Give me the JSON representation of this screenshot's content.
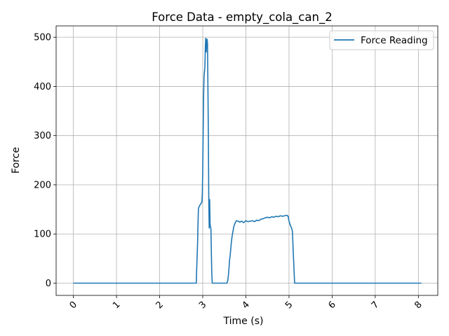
{
  "chart_data": {
    "type": "line",
    "title": "Force Data - empty_cola_can_2",
    "xlabel": "Time (s)",
    "ylabel": "Force",
    "xlim": [
      -0.4,
      8.45
    ],
    "ylim": [
      -24.9,
      523
    ],
    "x_ticks": [
      0,
      1,
      2,
      3,
      4,
      5,
      6,
      7,
      8
    ],
    "y_ticks": [
      0,
      100,
      200,
      300,
      400,
      500
    ],
    "x_tick_rotation": 45,
    "grid": true,
    "legend_position": "top-right",
    "series": [
      {
        "name": "Force Reading",
        "color": "#1f77b4",
        "points": [
          [
            0.0,
            0
          ],
          [
            2.85,
            0
          ],
          [
            2.86,
            30
          ],
          [
            2.87,
            55
          ],
          [
            2.88,
            80
          ],
          [
            2.89,
            120
          ],
          [
            2.9,
            152
          ],
          [
            2.93,
            158
          ],
          [
            2.96,
            162
          ],
          [
            2.98,
            165
          ],
          [
            2.99,
            180
          ],
          [
            3.0,
            230
          ],
          [
            3.01,
            310
          ],
          [
            3.02,
            380
          ],
          [
            3.03,
            420
          ],
          [
            3.05,
            440
          ],
          [
            3.06,
            480
          ],
          [
            3.07,
            498
          ],
          [
            3.08,
            470
          ],
          [
            3.09,
            490
          ],
          [
            3.1,
            496
          ],
          [
            3.11,
            488
          ],
          [
            3.12,
            400
          ],
          [
            3.13,
            300
          ],
          [
            3.14,
            170
          ],
          [
            3.15,
            112
          ],
          [
            3.16,
            170
          ],
          [
            3.17,
            120
          ],
          [
            3.19,
            110
          ],
          [
            3.2,
            60
          ],
          [
            3.21,
            20
          ],
          [
            3.22,
            0
          ],
          [
            3.56,
            0
          ],
          [
            3.58,
            5
          ],
          [
            3.6,
            20
          ],
          [
            3.62,
            45
          ],
          [
            3.64,
            60
          ],
          [
            3.66,
            80
          ],
          [
            3.68,
            95
          ],
          [
            3.7,
            105
          ],
          [
            3.72,
            115
          ],
          [
            3.75,
            122
          ],
          [
            3.78,
            127
          ],
          [
            3.82,
            126
          ],
          [
            3.86,
            124
          ],
          [
            3.9,
            126
          ],
          [
            3.95,
            123
          ],
          [
            4.0,
            127
          ],
          [
            4.05,
            125
          ],
          [
            4.1,
            126
          ],
          [
            4.15,
            127
          ],
          [
            4.2,
            125
          ],
          [
            4.25,
            128
          ],
          [
            4.3,
            127
          ],
          [
            4.35,
            130
          ],
          [
            4.4,
            131
          ],
          [
            4.45,
            133
          ],
          [
            4.5,
            134
          ],
          [
            4.55,
            133
          ],
          [
            4.6,
            135
          ],
          [
            4.65,
            134
          ],
          [
            4.7,
            136
          ],
          [
            4.75,
            135
          ],
          [
            4.8,
            137
          ],
          [
            4.85,
            136
          ],
          [
            4.9,
            137
          ],
          [
            4.95,
            138
          ],
          [
            4.98,
            136
          ],
          [
            5.0,
            126
          ],
          [
            5.03,
            118
          ],
          [
            5.06,
            112
          ],
          [
            5.08,
            105
          ],
          [
            5.1,
            60
          ],
          [
            5.12,
            20
          ],
          [
            5.13,
            0
          ],
          [
            8.07,
            0
          ]
        ]
      }
    ]
  }
}
